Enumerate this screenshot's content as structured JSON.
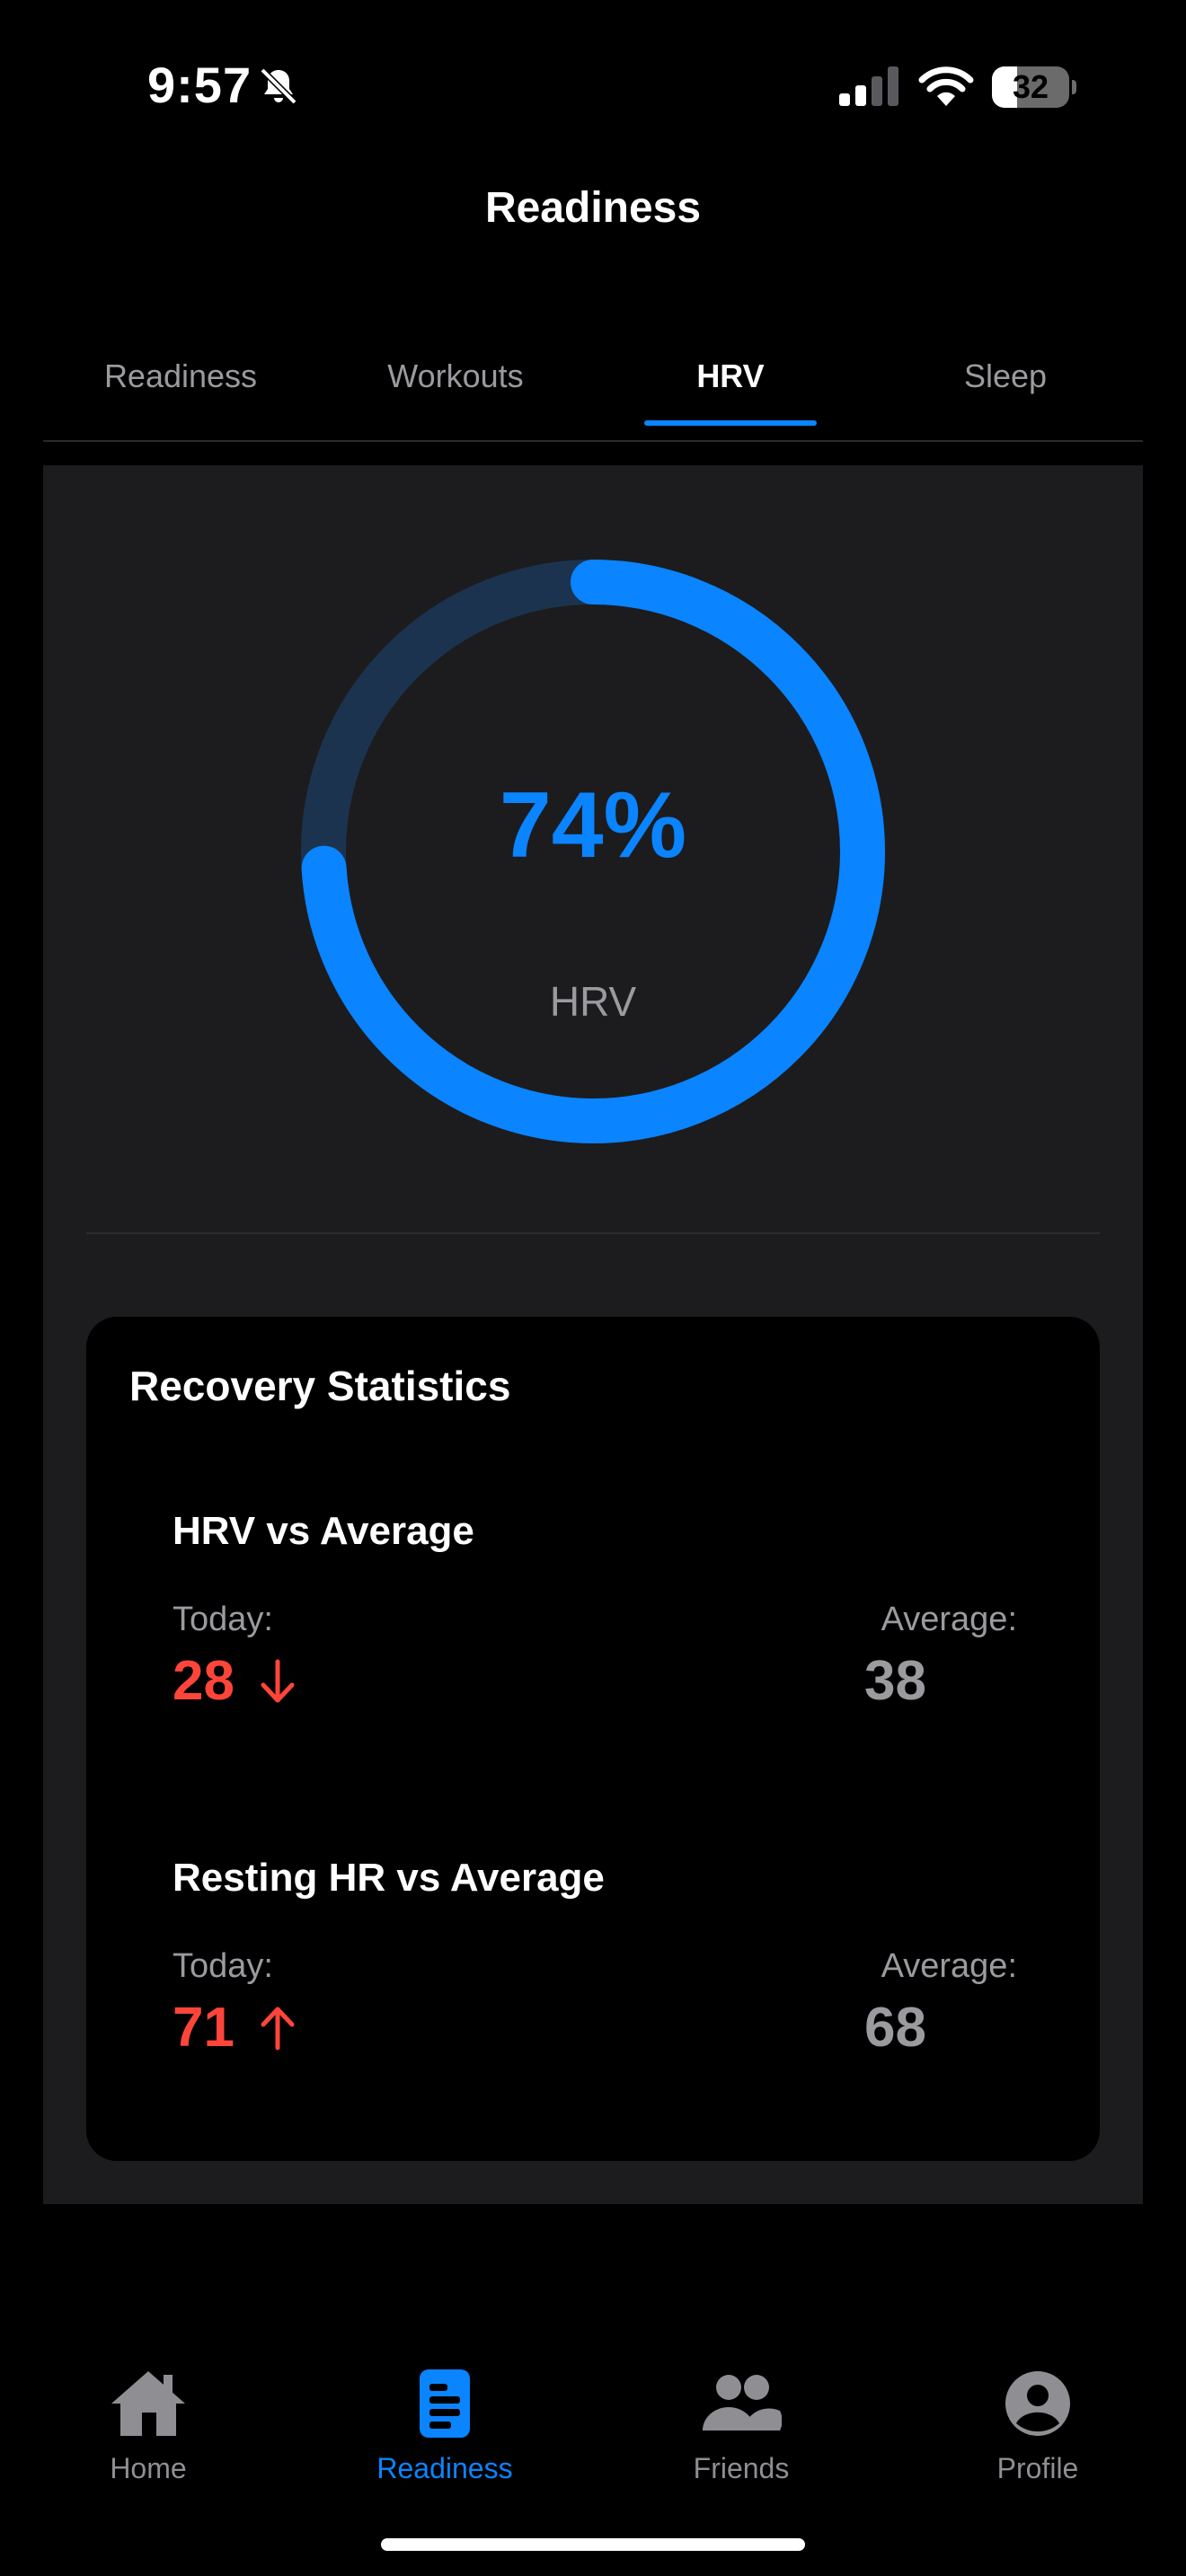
{
  "status_bar": {
    "time": "9:57",
    "battery": "32",
    "battery_level": 0.32,
    "icons": [
      "bell-slash-icon",
      "cellular-signal-icon",
      "wifi-icon",
      "battery-icon"
    ]
  },
  "header": {
    "title": "Readiness"
  },
  "tabs": [
    {
      "label": "Readiness",
      "active": false
    },
    {
      "label": "Workouts",
      "active": false
    },
    {
      "label": "HRV",
      "active": true
    },
    {
      "label": "Sleep",
      "active": false
    }
  ],
  "ring": {
    "value_text": "74%",
    "value": 0.74,
    "label": "HRV",
    "track_color": "#1c3350",
    "fill_color": "#0a84ff"
  },
  "recovery": {
    "title": "Recovery Statistics",
    "stats": [
      {
        "title": "HRV vs Average",
        "today_label": "Today:",
        "today_value": "28",
        "today_trend": "down-arrow-icon",
        "average_label": "Average:",
        "average_value": "38"
      },
      {
        "title": "Resting HR vs Average",
        "today_label": "Today:",
        "today_value": "71",
        "today_trend": "up-arrow-icon",
        "average_label": "Average:",
        "average_value": "68"
      }
    ],
    "alert_color": "#ff453a"
  },
  "nav": [
    {
      "label": "Home",
      "icon": "home-icon",
      "active": false
    },
    {
      "label": "Readiness",
      "icon": "document-icon",
      "active": true
    },
    {
      "label": "Friends",
      "icon": "people-icon",
      "active": false
    },
    {
      "label": "Profile",
      "icon": "person-circle-icon",
      "active": false
    }
  ],
  "colors": {
    "accent": "#0a84ff",
    "background": "#000000",
    "panel": "#1c1c1e"
  }
}
